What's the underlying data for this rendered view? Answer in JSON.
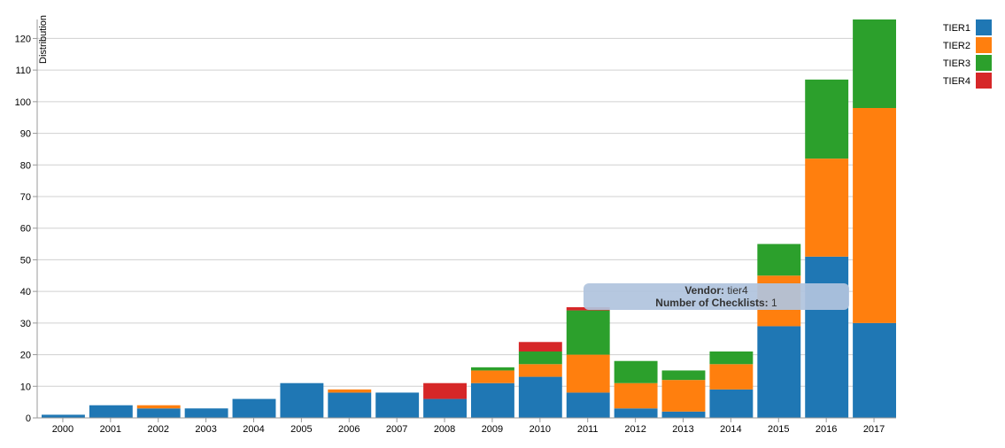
{
  "chart_data": {
    "type": "bar",
    "stacked": true,
    "categories": [
      "2000",
      "2001",
      "2002",
      "2003",
      "2004",
      "2005",
      "2006",
      "2007",
      "2008",
      "2009",
      "2010",
      "2011",
      "2012",
      "2013",
      "2014",
      "2015",
      "2016",
      "2017"
    ],
    "series": [
      {
        "name": "TIER1",
        "color": "#1f77b4",
        "values": [
          1,
          4,
          3,
          3,
          6,
          11,
          8,
          8,
          6,
          11,
          13,
          8,
          3,
          2,
          9,
          29,
          51,
          30
        ]
      },
      {
        "name": "TIER2",
        "color": "#ff7f0e",
        "values": [
          0,
          0,
          1,
          0,
          0,
          0,
          1,
          0,
          0,
          4,
          4,
          12,
          8,
          10,
          8,
          16,
          31,
          68
        ]
      },
      {
        "name": "TIER3",
        "color": "#2ca02c",
        "values": [
          0,
          0,
          0,
          0,
          0,
          0,
          0,
          0,
          0,
          1,
          4,
          14,
          7,
          3,
          4,
          10,
          25,
          28
        ]
      },
      {
        "name": "TIER4",
        "color": "#d62728",
        "values": [
          0,
          0,
          0,
          0,
          0,
          0,
          0,
          0,
          5,
          0,
          3,
          1,
          0,
          0,
          0,
          0,
          0,
          0
        ]
      }
    ],
    "ylabel": "Distribution",
    "ylim": [
      0,
      126
    ],
    "yticks": [
      0,
      10,
      20,
      30,
      40,
      50,
      60,
      70,
      80,
      90,
      100,
      110,
      120
    ],
    "grid": true,
    "legend_position": "top-right"
  },
  "tooltip": {
    "vendor_label": "Vendor:",
    "vendor_value": "tier4",
    "count_label": "Number of Checklists:",
    "count_value": "1"
  }
}
